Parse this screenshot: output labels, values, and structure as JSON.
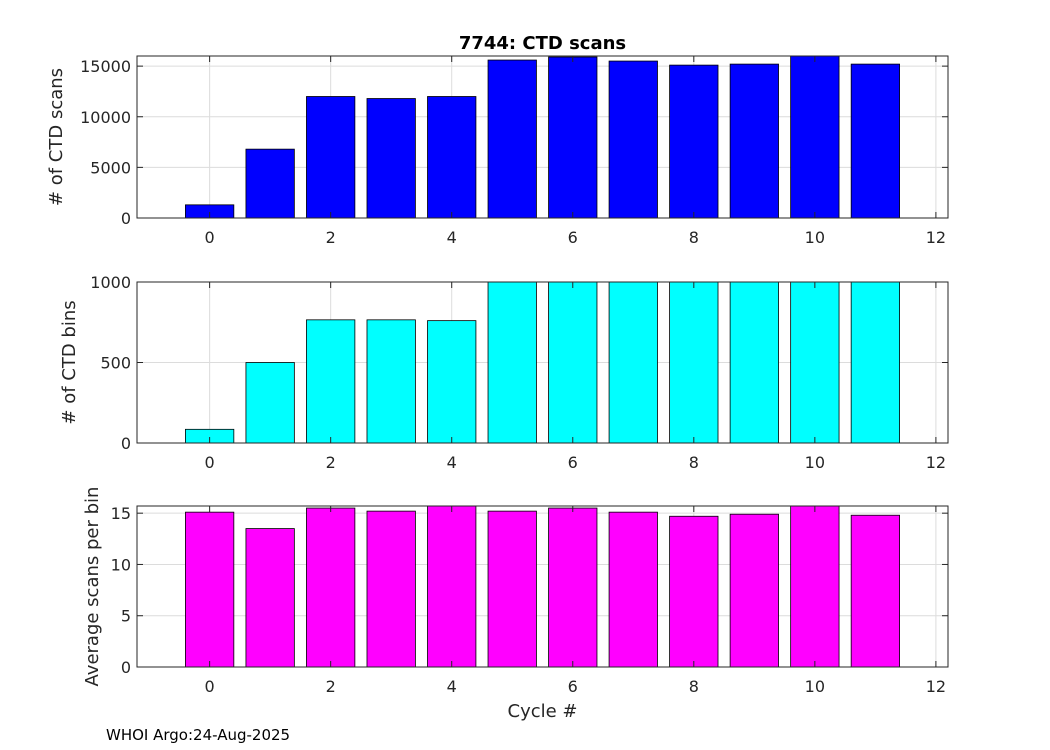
{
  "footer": "WHOI Argo:24-Aug-2025",
  "chart_data": [
    {
      "type": "bar",
      "title": "7744: CTD scans",
      "xlabel": "",
      "ylabel": "# of CTD scans",
      "color": "#0000ff",
      "x": [
        0,
        1,
        2,
        3,
        4,
        5,
        6,
        7,
        8,
        9,
        10,
        11
      ],
      "values": [
        1300,
        6800,
        12000,
        11800,
        12000,
        15600,
        15900,
        15500,
        15100,
        15200,
        16000,
        15200
      ],
      "xlim": [
        -1.2,
        12.2
      ],
      "ylim": [
        0,
        16000
      ],
      "xticks": [
        0,
        2,
        4,
        6,
        8,
        10,
        12
      ],
      "yticks": [
        0,
        5000,
        10000,
        15000
      ],
      "grid": true
    },
    {
      "type": "bar",
      "title": "",
      "xlabel": "",
      "ylabel": "# of CTD bins",
      "color": "#00ffff",
      "x": [
        0,
        1,
        2,
        3,
        4,
        5,
        6,
        7,
        8,
        9,
        10,
        11
      ],
      "values": [
        85,
        500,
        765,
        765,
        760,
        1000,
        1000,
        1000,
        1000,
        1000,
        1000,
        1000
      ],
      "xlim": [
        -1.2,
        12.2
      ],
      "ylim": [
        0,
        1000
      ],
      "xticks": [
        0,
        2,
        4,
        6,
        8,
        10,
        12
      ],
      "yticks": [
        0,
        500,
        1000
      ],
      "grid": true
    },
    {
      "type": "bar",
      "title": "",
      "xlabel": "Cycle #",
      "ylabel": "Average scans per bin",
      "color": "#ff00ff",
      "x": [
        0,
        1,
        2,
        3,
        4,
        5,
        6,
        7,
        8,
        9,
        10,
        11
      ],
      "values": [
        15.1,
        13.5,
        15.5,
        15.2,
        15.7,
        15.2,
        15.5,
        15.1,
        14.7,
        14.9,
        15.7,
        14.8
      ],
      "xlim": [
        -1.2,
        12.2
      ],
      "ylim": [
        0,
        15.7
      ],
      "xticks": [
        0,
        2,
        4,
        6,
        8,
        10,
        12
      ],
      "yticks": [
        0,
        5,
        10,
        15
      ],
      "grid": true
    }
  ]
}
